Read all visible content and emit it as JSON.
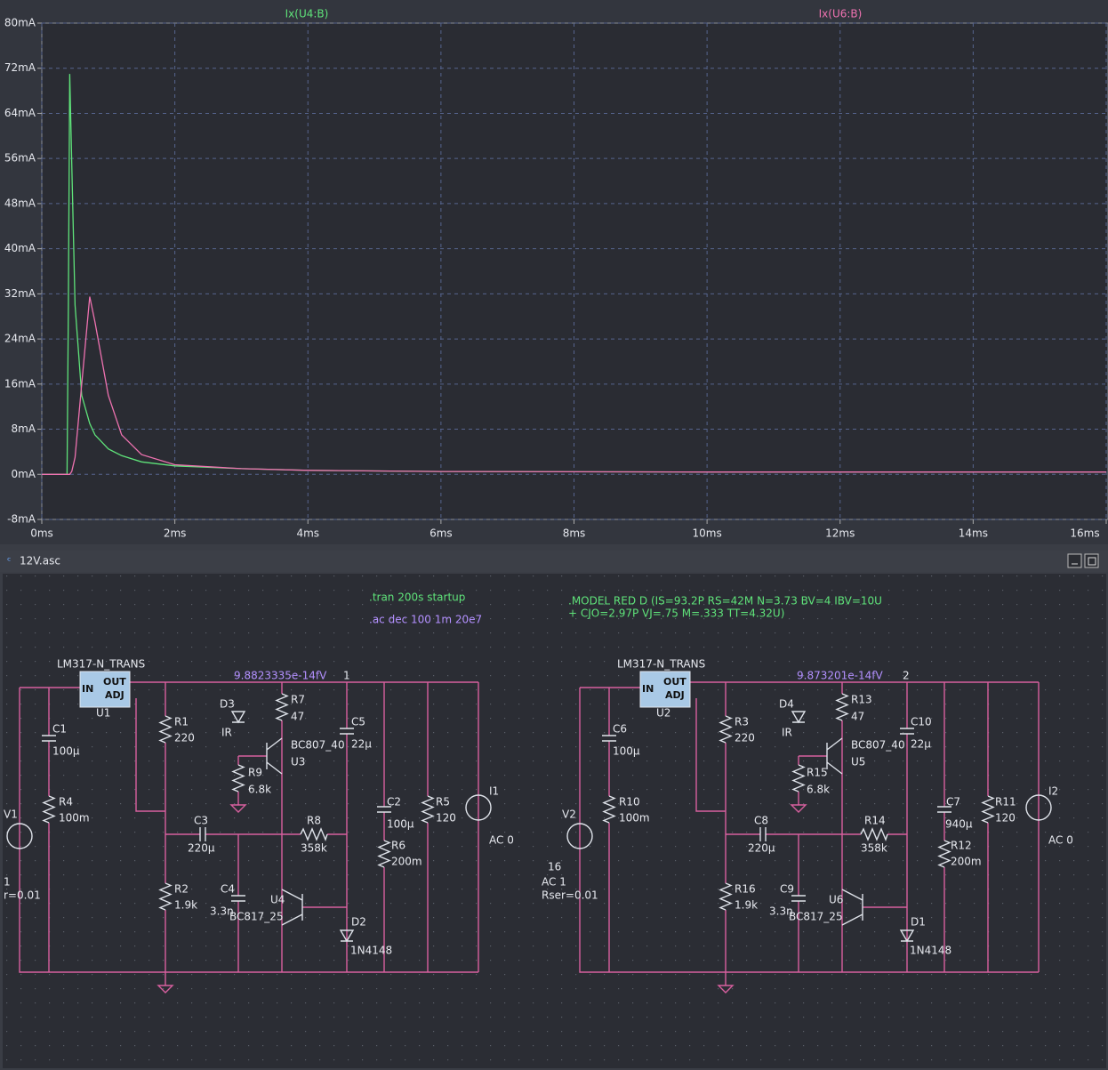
{
  "chart_data": {
    "type": "line",
    "x": [
      0,
      0.38,
      0.4,
      0.42,
      0.45,
      0.5,
      0.6,
      0.72,
      0.8,
      1,
      1.2,
      1.5,
      2,
      3,
      4,
      6,
      10,
      16
    ],
    "series": [
      {
        "name": "Ix(U4:B)",
        "color": "#5fe37a",
        "values": [
          0,
          0,
          30,
          71,
          55,
          30,
          14,
          9,
          7,
          4.5,
          3.3,
          2.2,
          1.5,
          1,
          0.7,
          0.5,
          0.4,
          0.4
        ]
      },
      {
        "name": "Ix(U6:B)",
        "color": "#ee72b0",
        "values": [
          0,
          0,
          0,
          0,
          0.5,
          3,
          16,
          31.5,
          27,
          14,
          7,
          3.5,
          1.7,
          1,
          0.7,
          0.5,
          0.4,
          0.4
        ]
      }
    ],
    "xlim": [
      0,
      16
    ],
    "xticks": [
      {
        "value": 0,
        "label": "0ms"
      },
      {
        "value": 2,
        "label": "2ms"
      },
      {
        "value": 4,
        "label": "4ms"
      },
      {
        "value": 6,
        "label": "6ms"
      },
      {
        "value": 8,
        "label": "8ms"
      },
      {
        "value": 10,
        "label": "10ms"
      },
      {
        "value": 12,
        "label": "12ms"
      },
      {
        "value": 14,
        "label": "14ms"
      },
      {
        "value": 16,
        "label": "16ms"
      }
    ],
    "ylim": [
      -8,
      80
    ],
    "yticks": [
      {
        "value": -8,
        "label": "-8mA"
      },
      {
        "value": 0,
        "label": "0mA"
      },
      {
        "value": 8,
        "label": "8mA"
      },
      {
        "value": 16,
        "label": "16mA"
      },
      {
        "value": 24,
        "label": "24mA"
      },
      {
        "value": 32,
        "label": "32mA"
      },
      {
        "value": 40,
        "label": "40mA"
      },
      {
        "value": 48,
        "label": "48mA"
      },
      {
        "value": 56,
        "label": "56mA"
      },
      {
        "value": 64,
        "label": "64mA"
      },
      {
        "value": 72,
        "label": "72mA"
      },
      {
        "value": 80,
        "label": "80mA"
      }
    ],
    "grid": true
  },
  "window_bar": {
    "title": "12V.asc"
  },
  "schematic": {
    "directives": [
      ".tran 200s startup",
      ".ac dec 100 1m 20e7",
      ".MODEL RED D (IS=93.2P RS=42M N=3.73 BV=4 IBV=10U",
      "+ CJO=2.97P VJ=.75 M=.333 TT=4.32U)"
    ],
    "left": [
      "LM317-N_TRANS",
      "IN",
      "OUT",
      "ADJ",
      "U1",
      "C1",
      "100µ",
      "R4",
      "100m",
      "V1",
      "1",
      "r=0.01",
      "R1",
      "220",
      "D3",
      "IR",
      "R7",
      "47",
      "BC807_40",
      "U3",
      "R9",
      "6.8k",
      "C5",
      "22µ",
      "9.8823335e-14fV",
      "1",
      "C3",
      "220µ",
      "R8",
      "358k",
      "C2",
      "100µ",
      "R5",
      "120",
      "I1",
      "AC 0",
      "R6",
      "200m",
      "R2",
      "1.9k",
      "C4",
      "3.3n",
      "U4",
      "BC817_25",
      "D2",
      "1N4148"
    ],
    "right": [
      "LM317-N_TRANS",
      "IN",
      "OUT",
      "ADJ",
      "U2",
      "C6",
      "100µ",
      "R10",
      "100m",
      "V2",
      "16",
      "AC 1",
      "Rser=0.01",
      "R3",
      "220",
      "D4",
      "IR",
      "R13",
      "47",
      "BC807_40",
      "U5",
      "R15",
      "6.8k",
      "C10",
      "22µ",
      "9.873201e-14fV",
      "2",
      "C8",
      "220µ",
      "R14",
      "358k",
      "C7",
      "940µ",
      "R12",
      "200m",
      "R11",
      "120",
      "I2",
      "AC 0",
      "R16",
      "1.9k",
      "C9",
      "3.3n",
      "U6",
      "BC817_25",
      "D1",
      "1N4148"
    ]
  }
}
